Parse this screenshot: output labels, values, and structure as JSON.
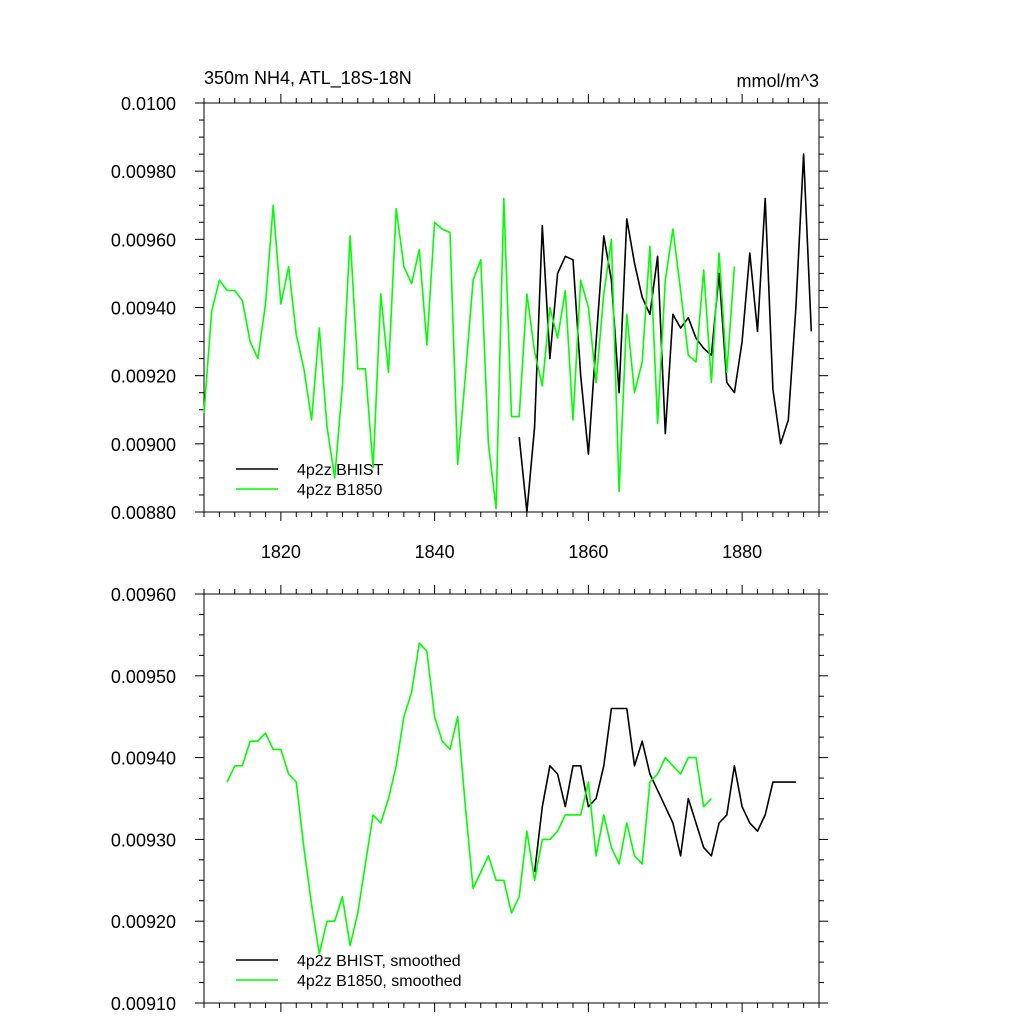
{
  "chart_data": [
    {
      "type": "line",
      "title": "350m NH4, ATL_18S-18N",
      "units": "mmol/m^3",
      "xlim": [
        1810,
        1890
      ],
      "ylim": [
        0.0088,
        0.01
      ],
      "yticks": [
        "0.00880",
        "0.00900",
        "0.00920",
        "0.00940",
        "0.00960",
        "0.00980",
        "0.0100"
      ],
      "xticks": [
        "1820",
        "1840",
        "1860",
        "1880"
      ],
      "legend_position": "bottom-left",
      "series": [
        {
          "name": "4p2z BHIST",
          "color": "#000000",
          "x": [
            1851,
            1852,
            1853,
            1854,
            1855,
            1856,
            1857,
            1858,
            1859,
            1860,
            1861,
            1862,
            1863,
            1864,
            1865,
            1866,
            1867,
            1868,
            1869,
            1870,
            1871,
            1872,
            1873,
            1874,
            1875,
            1876,
            1877,
            1878,
            1879,
            1880,
            1881,
            1882,
            1883,
            1884,
            1885,
            1886,
            1887,
            1888,
            1889
          ],
          "values": [
            0.00902,
            0.0088,
            0.00905,
            0.00964,
            0.00925,
            0.0095,
            0.00955,
            0.00954,
            0.0092,
            0.00897,
            0.0093,
            0.00961,
            0.00948,
            0.00915,
            0.00966,
            0.00953,
            0.00943,
            0.00938,
            0.00955,
            0.00903,
            0.00938,
            0.00934,
            0.00937,
            0.00931,
            0.00928,
            0.00926,
            0.0095,
            0.00918,
            0.00915,
            0.0093,
            0.00956,
            0.00933,
            0.00972,
            0.00916,
            0.009,
            0.00907,
            0.0094,
            0.00985,
            0.00933
          ]
        },
        {
          "name": "4p2z B1850",
          "color": "#00ff00",
          "x": [
            1810,
            1811,
            1812,
            1813,
            1814,
            1815,
            1816,
            1817,
            1818,
            1819,
            1820,
            1821,
            1822,
            1823,
            1824,
            1825,
            1826,
            1827,
            1828,
            1829,
            1830,
            1831,
            1832,
            1833,
            1834,
            1835,
            1836,
            1837,
            1838,
            1839,
            1840,
            1841,
            1842,
            1843,
            1844,
            1845,
            1846,
            1847,
            1848,
            1849,
            1850,
            1851,
            1852,
            1853,
            1854,
            1855,
            1856,
            1857,
            1858,
            1859,
            1860,
            1861,
            1862,
            1863,
            1864,
            1865,
            1866,
            1867,
            1868,
            1869,
            1870,
            1871,
            1872,
            1873,
            1874,
            1875,
            1876,
            1877,
            1878,
            1879
          ],
          "values": [
            0.00909,
            0.00939,
            0.00948,
            0.00945,
            0.00945,
            0.00942,
            0.0093,
            0.00925,
            0.00941,
            0.0097,
            0.00941,
            0.00952,
            0.00932,
            0.00922,
            0.00907,
            0.00934,
            0.00905,
            0.0089,
            0.00917,
            0.00961,
            0.00922,
            0.00922,
            0.00893,
            0.00944,
            0.00921,
            0.00969,
            0.00952,
            0.00947,
            0.00957,
            0.00929,
            0.00965,
            0.00963,
            0.00962,
            0.00894,
            0.0092,
            0.00948,
            0.00954,
            0.009,
            0.00881,
            0.00972,
            0.00908,
            0.00908,
            0.00944,
            0.00927,
            0.00917,
            0.0094,
            0.00931,
            0.00945,
            0.00907,
            0.00948,
            0.0094,
            0.00918,
            0.00944,
            0.0096,
            0.00886,
            0.00938,
            0.00915,
            0.00924,
            0.00958,
            0.00906,
            0.00948,
            0.00963,
            0.00945,
            0.00926,
            0.00924,
            0.00951,
            0.00918,
            0.00956,
            0.00921,
            0.00952
          ]
        }
      ]
    },
    {
      "type": "line",
      "xlim": [
        1810,
        1890
      ],
      "ylim": [
        0.0091,
        0.0096
      ],
      "yticks": [
        "0.00910",
        "0.00920",
        "0.00930",
        "0.00940",
        "0.00950",
        "0.00960"
      ],
      "legend_position": "bottom-left",
      "series": [
        {
          "name": "4p2z BHIST, smoothed",
          "color": "#000000",
          "x": [
            1853,
            1854,
            1855,
            1856,
            1857,
            1858,
            1859,
            1860,
            1861,
            1862,
            1863,
            1864,
            1865,
            1866,
            1867,
            1868,
            1869,
            1870,
            1871,
            1872,
            1873,
            1874,
            1875,
            1876,
            1877,
            1878,
            1879,
            1880,
            1881,
            1882,
            1883,
            1884,
            1885,
            1886,
            1887
          ],
          "values": [
            0.00926,
            0.00934,
            0.00939,
            0.00938,
            0.00934,
            0.00939,
            0.00939,
            0.00934,
            0.00935,
            0.00939,
            0.00946,
            0.00946,
            0.00946,
            0.00939,
            0.00942,
            0.00938,
            0.00936,
            0.00934,
            0.00932,
            0.00928,
            0.00935,
            0.00932,
            0.00929,
            0.00928,
            0.00932,
            0.00933,
            0.00939,
            0.00934,
            0.00932,
            0.00931,
            0.00933,
            0.00937,
            0.00937,
            0.00937,
            0.00937
          ]
        },
        {
          "name": "4p2z B1850, smoothed",
          "color": "#00ff00",
          "x": [
            1813,
            1814,
            1815,
            1816,
            1817,
            1818,
            1819,
            1820,
            1821,
            1822,
            1823,
            1824,
            1825,
            1826,
            1827,
            1828,
            1829,
            1830,
            1831,
            1832,
            1833,
            1834,
            1835,
            1836,
            1837,
            1838,
            1839,
            1840,
            1841,
            1842,
            1843,
            1844,
            1845,
            1846,
            1847,
            1848,
            1849,
            1850,
            1851,
            1852,
            1853,
            1854,
            1855,
            1856,
            1857,
            1858,
            1859,
            1860,
            1861,
            1862,
            1863,
            1864,
            1865,
            1866,
            1867,
            1868,
            1869,
            1870,
            1871,
            1872,
            1873,
            1874,
            1875,
            1876
          ],
          "values": [
            0.00937,
            0.00939,
            0.00939,
            0.00942,
            0.00942,
            0.00943,
            0.00941,
            0.00941,
            0.00938,
            0.00937,
            0.00929,
            0.00922,
            0.00916,
            0.0092,
            0.0092,
            0.00923,
            0.00917,
            0.00921,
            0.00927,
            0.00933,
            0.00932,
            0.00935,
            0.00939,
            0.00945,
            0.00948,
            0.00954,
            0.00953,
            0.00945,
            0.00942,
            0.00941,
            0.00945,
            0.00934,
            0.00924,
            0.00926,
            0.00928,
            0.00925,
            0.00925,
            0.00921,
            0.00923,
            0.00931,
            0.00925,
            0.0093,
            0.0093,
            0.00931,
            0.00933,
            0.00933,
            0.00933,
            0.00937,
            0.00928,
            0.00933,
            0.00929,
            0.00927,
            0.00932,
            0.00928,
            0.00927,
            0.00937,
            0.00938,
            0.0094,
            0.00939,
            0.00938,
            0.0094,
            0.0094,
            0.00934,
            0.00935
          ]
        }
      ]
    }
  ]
}
